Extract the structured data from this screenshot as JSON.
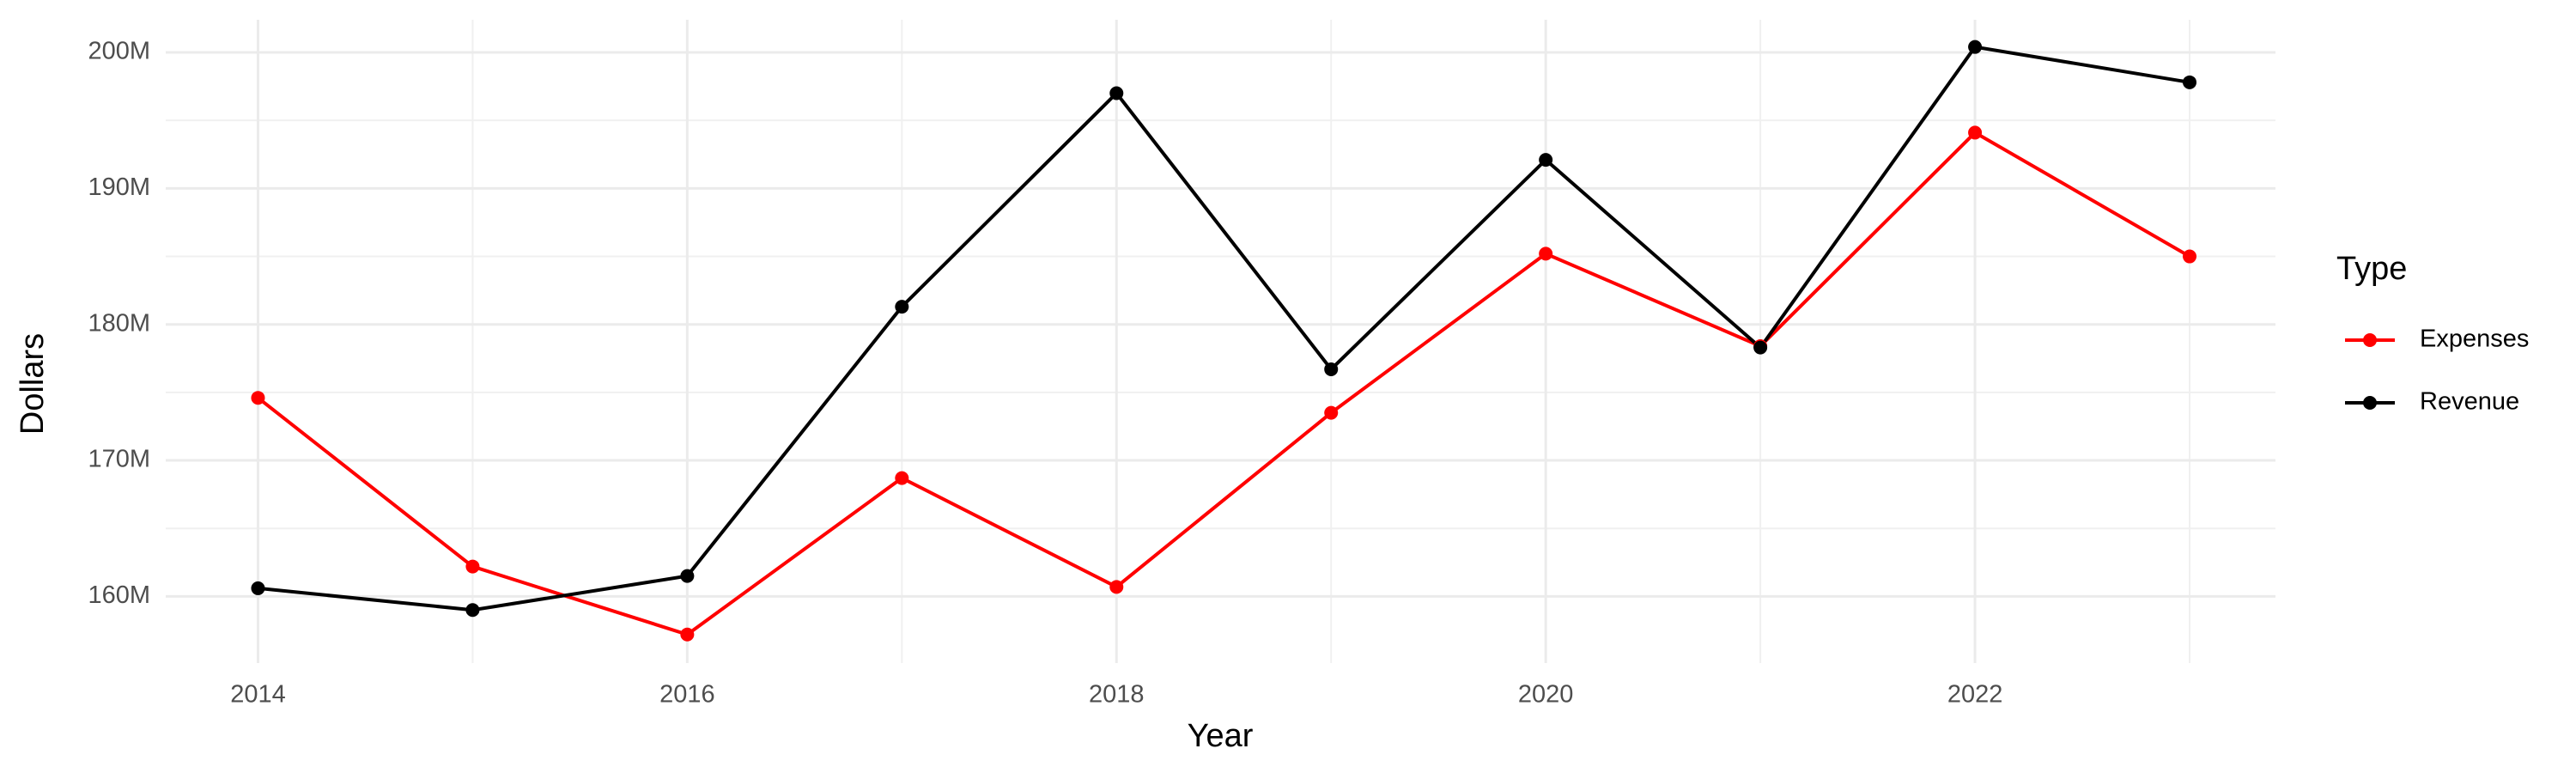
{
  "chart_data": {
    "type": "line",
    "xlabel": "Year",
    "ylabel": "Dollars",
    "legend_title": "Type",
    "legend": "right",
    "grid": true,
    "x": [
      2014,
      2015,
      2016,
      2017,
      2018,
      2019,
      2020,
      2021,
      2022,
      2023
    ],
    "series": [
      {
        "name": "Expenses",
        "color": "#ff0000",
        "values": [
          174.6,
          162.2,
          157.2,
          168.7,
          160.7,
          173.5,
          185.2,
          178.4,
          194.1,
          185.0
        ]
      },
      {
        "name": "Revenue",
        "color": "#000000",
        "values": [
          160.6,
          159.0,
          161.5,
          181.3,
          197.0,
          176.7,
          192.1,
          178.3,
          200.4,
          197.8
        ]
      }
    ],
    "xlim": [
      2013.57,
      2023.4
    ],
    "ylim": [
      155.1,
      202.4
    ],
    "xticks": [
      2014,
      2016,
      2018,
      2020,
      2022
    ],
    "yticks": [
      {
        "value": 160,
        "label": "160M"
      },
      {
        "value": 170,
        "label": "170M"
      },
      {
        "value": 180,
        "label": "180M"
      },
      {
        "value": 190,
        "label": "190M"
      },
      {
        "value": 200,
        "label": "200M"
      }
    ]
  }
}
